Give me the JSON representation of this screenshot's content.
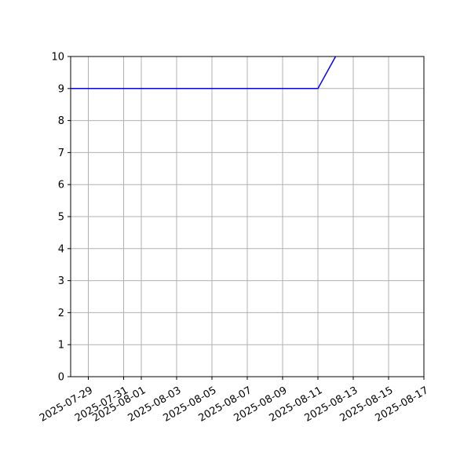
{
  "chart_data": {
    "type": "line",
    "title": "",
    "xlabel": "",
    "ylabel": "",
    "xlim": [
      "2025-07-28",
      "2025-08-17"
    ],
    "ylim": [
      0,
      10
    ],
    "grid": true,
    "legend": "none",
    "x_ticks": [
      "2025-07-29",
      "2025-07-31",
      "2025-08-01",
      "2025-08-03",
      "2025-08-05",
      "2025-08-07",
      "2025-08-09",
      "2025-08-11",
      "2025-08-13",
      "2025-08-15",
      "2025-08-17"
    ],
    "y_ticks": [
      0,
      1,
      2,
      3,
      4,
      5,
      6,
      7,
      8,
      9,
      10
    ],
    "series": [
      {
        "color": "#0000ff",
        "x": [
          "2025-07-28",
          "2025-08-11",
          "2025-08-12"
        ],
        "y": [
          9,
          9,
          10
        ]
      }
    ]
  },
  "colors": {
    "grid": "#b0b0b0",
    "axis": "#000000",
    "background": "#ffffff"
  }
}
